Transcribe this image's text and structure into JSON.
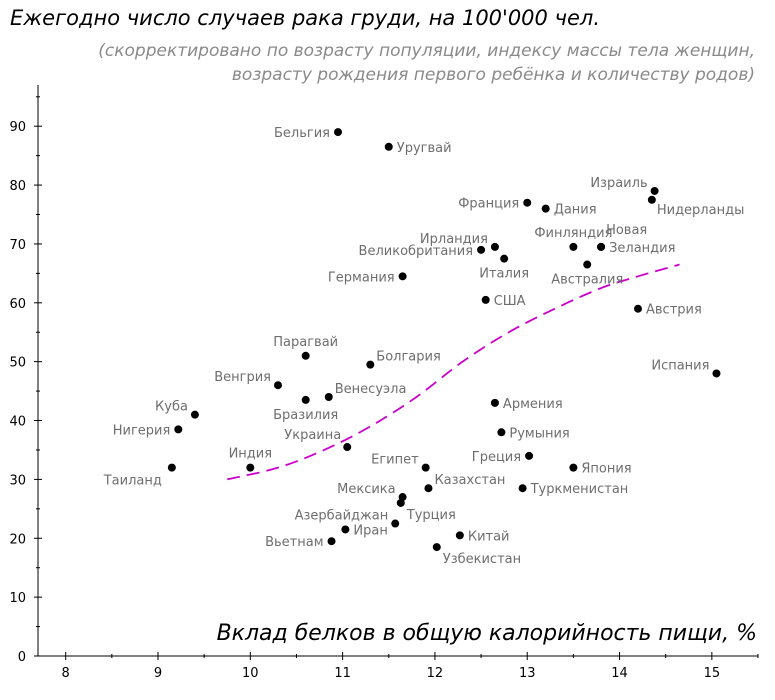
{
  "chart_data": {
    "type": "scatter",
    "title": "Ежегодно число случаев рака груди, на 100'000 чел.",
    "subtitle_lines": [
      "(скорректировано по возрасту популяции, индексу массы тела женщин,",
      "возрасту рождения первого ребёнка и количеству родов)"
    ],
    "xlabel": "Вклад белков в общую калорийность пищи, %",
    "ylabel": "",
    "xlim": [
      7.7,
      15.5
    ],
    "ylim": [
      0,
      97
    ],
    "x_ticks": [
      8,
      9,
      10,
      11,
      12,
      13,
      14,
      15
    ],
    "y_ticks": [
      0,
      10,
      20,
      30,
      40,
      50,
      60,
      70,
      80,
      90
    ],
    "grid": false,
    "point_color": "#000000",
    "label_color": "#6e6e6e",
    "trend_color": "#cc00cc",
    "points": [
      {
        "label": "Бельгия",
        "x": 10.95,
        "y": 89,
        "pos": "left"
      },
      {
        "label": "Уругвай",
        "x": 11.5,
        "y": 86.5,
        "pos": "right"
      },
      {
        "label": "Франция",
        "x": 13.0,
        "y": 77,
        "pos": "left"
      },
      {
        "label": "Дания",
        "x": 13.2,
        "y": 76,
        "pos": "right"
      },
      {
        "label": "Израиль",
        "x": 14.38,
        "y": 79,
        "pos": "left-up"
      },
      {
        "label": "Нидерланды",
        "x": 14.35,
        "y": 77.5,
        "pos": "right-down"
      },
      {
        "label": "Ирландия",
        "x": 12.65,
        "y": 69.5,
        "pos": "left-up"
      },
      {
        "label": "Великобритания",
        "x": 12.5,
        "y": 69,
        "pos": "left"
      },
      {
        "label": "Италия",
        "x": 12.75,
        "y": 67.5,
        "pos": "below"
      },
      {
        "label": "Финляндия",
        "x": 13.5,
        "y": 69.5,
        "pos": "above"
      },
      {
        "label": "Новая",
        "x": 13.8,
        "y": 69.5,
        "pos": "above-right"
      },
      {
        "label": "Зеландия",
        "x": 13.8,
        "y": 69.5,
        "pos": "right"
      },
      {
        "label": "Австралия",
        "x": 13.65,
        "y": 66.5,
        "pos": "below"
      },
      {
        "label": "Германия",
        "x": 11.65,
        "y": 64.5,
        "pos": "left"
      },
      {
        "label": "США",
        "x": 12.55,
        "y": 60.5,
        "pos": "right"
      },
      {
        "label": "Австрия",
        "x": 14.2,
        "y": 59,
        "pos": "right"
      },
      {
        "label": "Парагвай",
        "x": 10.6,
        "y": 51,
        "pos": "above"
      },
      {
        "label": "Болгария",
        "x": 11.3,
        "y": 49.5,
        "pos": "right-up"
      },
      {
        "label": "Испания",
        "x": 15.05,
        "y": 48,
        "pos": "left-up"
      },
      {
        "label": "Венгрия",
        "x": 10.3,
        "y": 46,
        "pos": "left-up"
      },
      {
        "label": "Венесуэла",
        "x": 10.85,
        "y": 44,
        "pos": "right-up"
      },
      {
        "label": "Бразилия",
        "x": 10.6,
        "y": 43.5,
        "pos": "below"
      },
      {
        "label": "Армения",
        "x": 12.65,
        "y": 43,
        "pos": "right"
      },
      {
        "label": "Куба",
        "x": 9.4,
        "y": 41,
        "pos": "left-up"
      },
      {
        "label": "Нигерия",
        "x": 9.22,
        "y": 38.5,
        "pos": "left"
      },
      {
        "label": "Румыния",
        "x": 12.72,
        "y": 38,
        "pos": "right"
      },
      {
        "label": "Украина",
        "x": 11.05,
        "y": 35.5,
        "pos": "above-left"
      },
      {
        "label": "Греция",
        "x": 13.02,
        "y": 34,
        "pos": "left"
      },
      {
        "label": "Индия",
        "x": 10.0,
        "y": 32,
        "pos": "above"
      },
      {
        "label": "Египет",
        "x": 11.9,
        "y": 32,
        "pos": "left-up"
      },
      {
        "label": "Япония",
        "x": 13.5,
        "y": 32,
        "pos": "right"
      },
      {
        "label": "Таиланд",
        "x": 9.15,
        "y": 32,
        "pos": "below-left"
      },
      {
        "label": "Казахстан",
        "x": 11.93,
        "y": 28.5,
        "pos": "right-up"
      },
      {
        "label": "Туркменистан",
        "x": 12.95,
        "y": 28.5,
        "pos": "right"
      },
      {
        "label": "Мексика",
        "x": 11.65,
        "y": 27,
        "pos": "left-up"
      },
      {
        "label": "Турция",
        "x": 11.63,
        "y": 26,
        "pos": "below-right"
      },
      {
        "label": "Азербайджан",
        "x": 11.57,
        "y": 22.5,
        "pos": "left-up"
      },
      {
        "label": "Иран",
        "x": 11.03,
        "y": 21.5,
        "pos": "right"
      },
      {
        "label": "Китай",
        "x": 12.27,
        "y": 20.5,
        "pos": "right"
      },
      {
        "label": "Вьетнам",
        "x": 10.88,
        "y": 19.5,
        "pos": "left"
      },
      {
        "label": "Узбекистан",
        "x": 12.02,
        "y": 18.5,
        "pos": "below-right"
      }
    ],
    "trend_line": [
      {
        "x": 9.75,
        "y": 30
      },
      {
        "x": 10.3,
        "y": 32
      },
      {
        "x": 10.8,
        "y": 35
      },
      {
        "x": 11.3,
        "y": 39
      },
      {
        "x": 11.8,
        "y": 44
      },
      {
        "x": 12.3,
        "y": 50
      },
      {
        "x": 12.8,
        "y": 55
      },
      {
        "x": 13.3,
        "y": 59
      },
      {
        "x": 13.8,
        "y": 62.5
      },
      {
        "x": 14.2,
        "y": 64.5
      },
      {
        "x": 14.65,
        "y": 66.5
      }
    ]
  }
}
